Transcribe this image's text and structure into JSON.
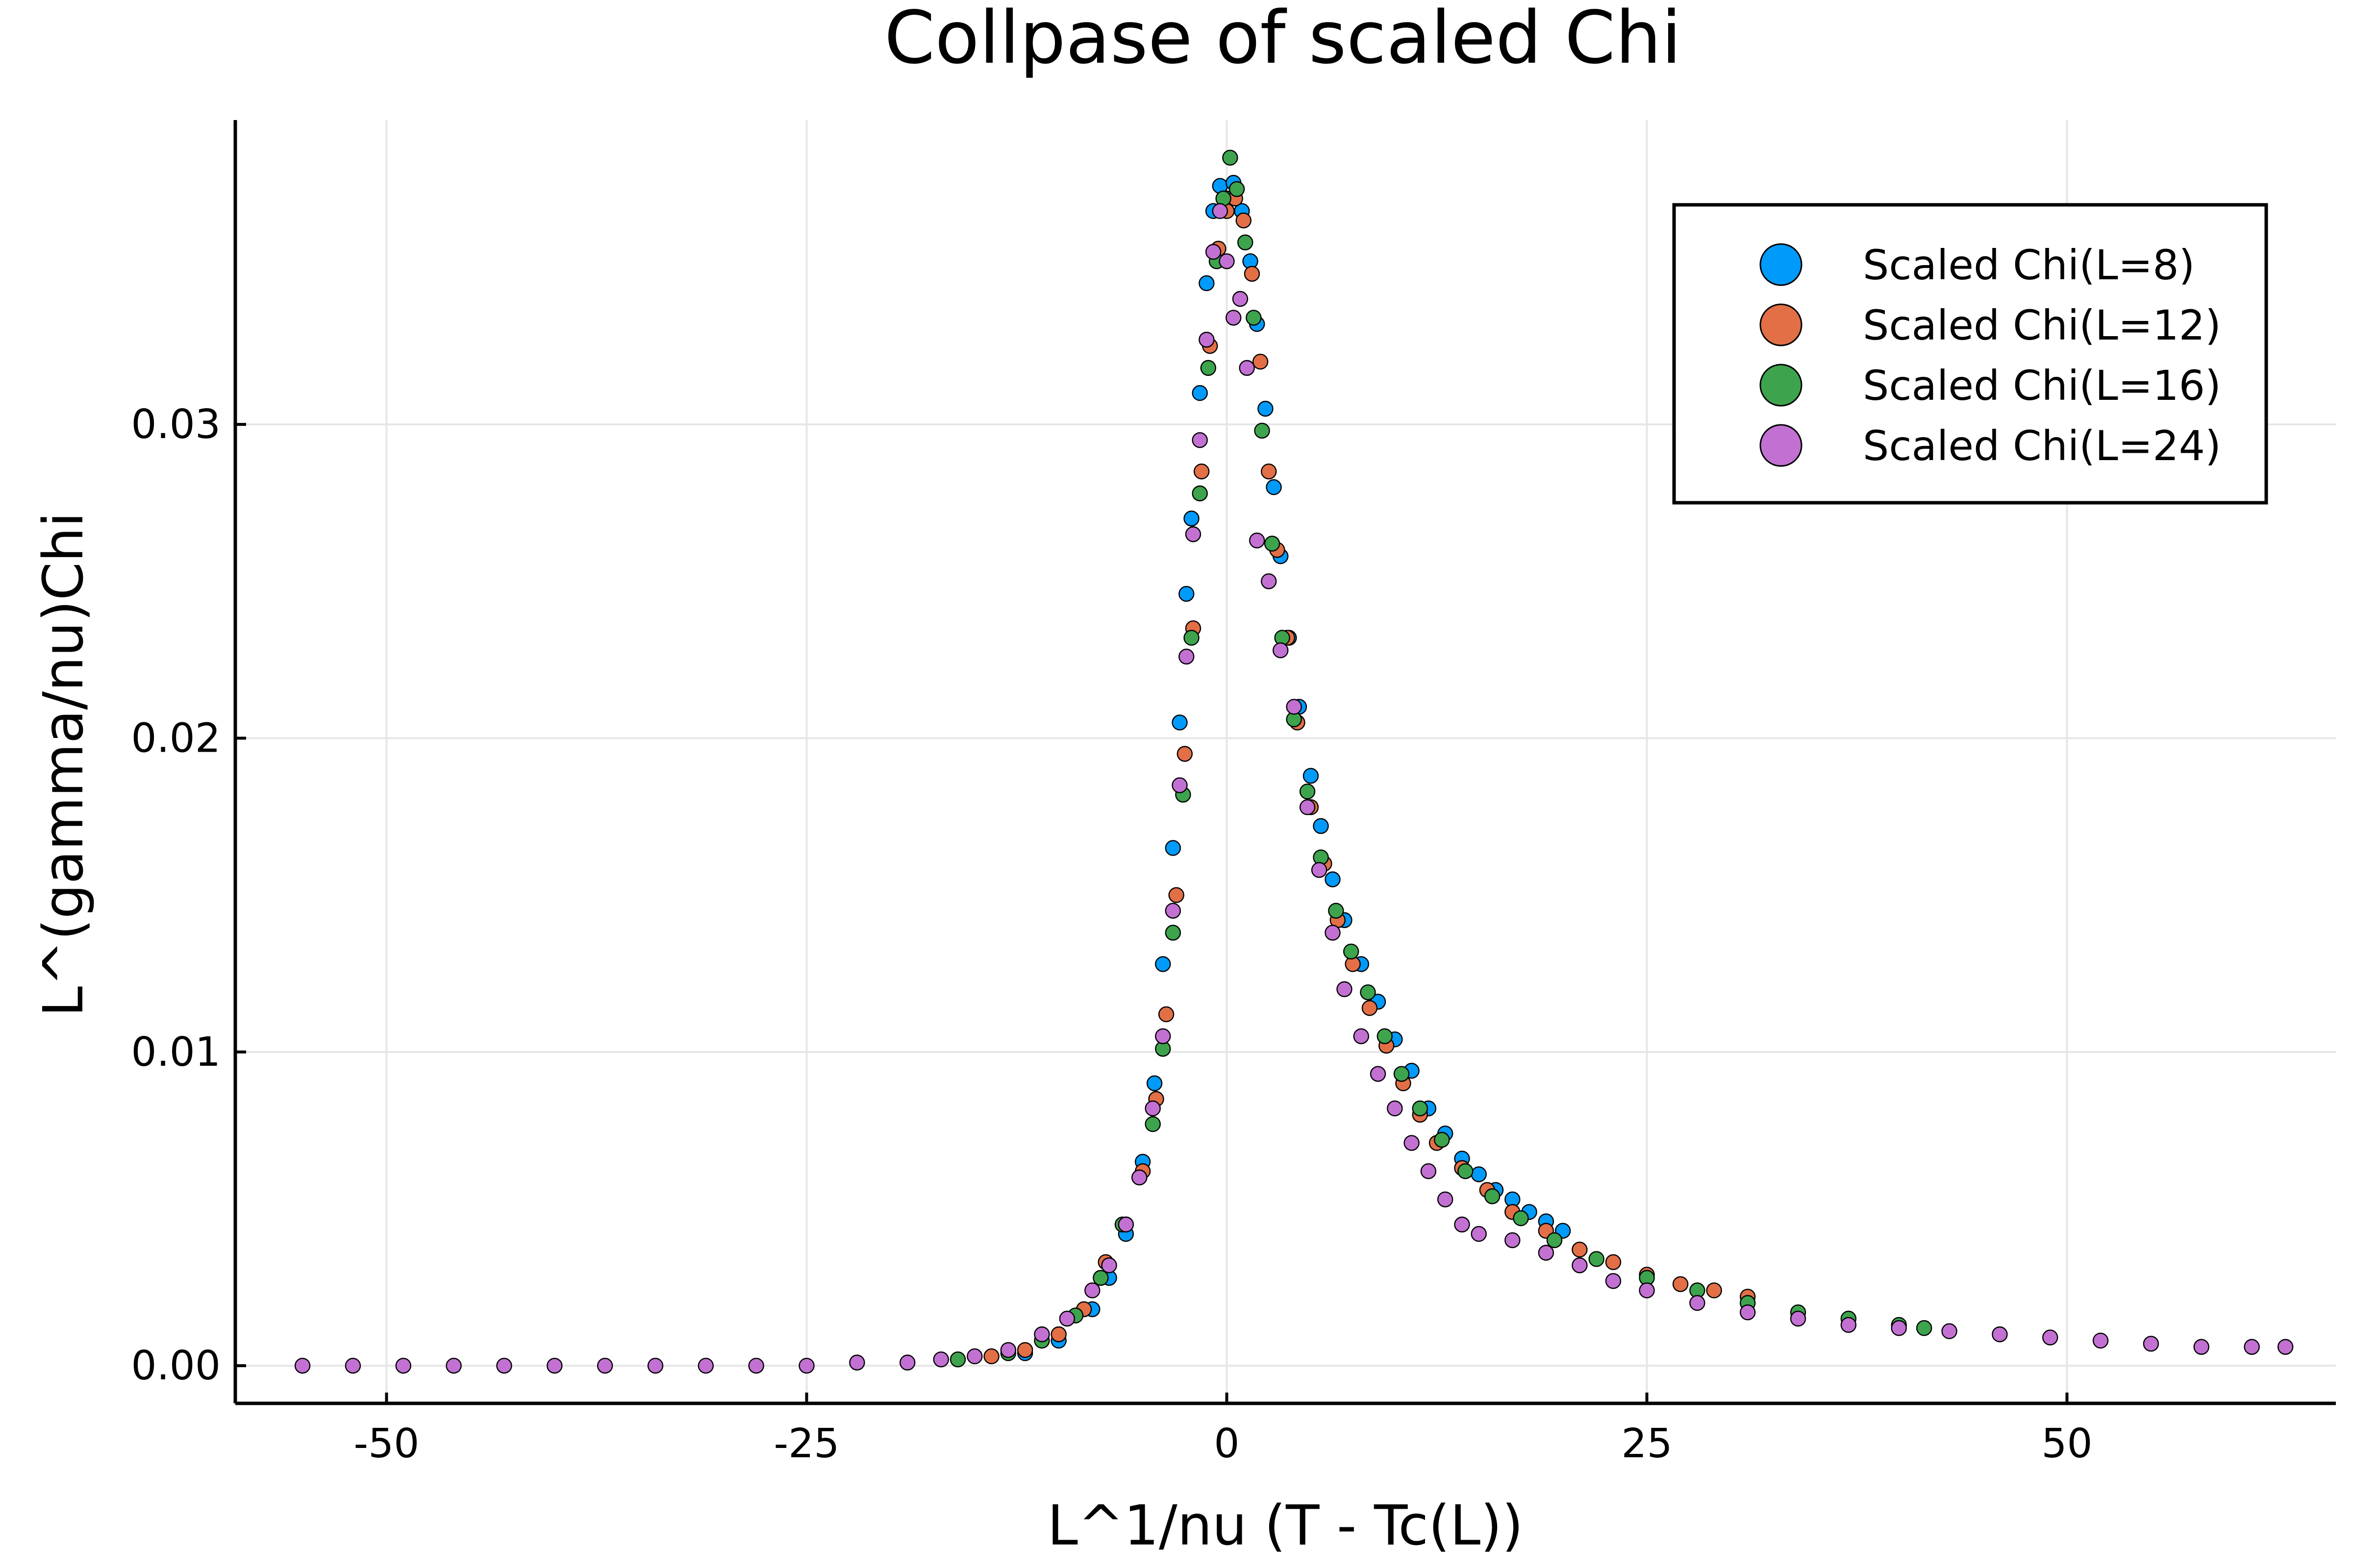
{
  "chart_data": {
    "type": "scatter",
    "title": "Collpase of scaled Chi",
    "xlabel": "L^1/nu (T - Tc(L))",
    "ylabel": "L^(gamma/nu)Chi",
    "xlim": [
      -59,
      66
    ],
    "ylim": [
      -0.0012,
      0.0397
    ],
    "xticks": [
      -50,
      -25,
      0,
      25,
      50
    ],
    "xtick_labels": [
      "-50",
      "-25",
      "0",
      "25",
      "50"
    ],
    "yticks": [
      0.0,
      0.01,
      0.02,
      0.03
    ],
    "ytick_labels": [
      "0.00",
      "0.01",
      "0.02",
      "0.03"
    ],
    "grid": true,
    "legend_position": "top-right",
    "series": [
      {
        "name": "Scaled Chi(L=8)",
        "color": "#009AFA",
        "points": [
          [
            -12,
            0.0004
          ],
          [
            -10,
            0.0008
          ],
          [
            -8,
            0.0018
          ],
          [
            -7,
            0.0028
          ],
          [
            -6,
            0.0042
          ],
          [
            -5,
            0.0065
          ],
          [
            -4.3,
            0.009
          ],
          [
            -3.8,
            0.0128
          ],
          [
            -3.2,
            0.0165
          ],
          [
            -2.8,
            0.0205
          ],
          [
            -2.4,
            0.0246
          ],
          [
            -2.1,
            0.027
          ],
          [
            -1.6,
            0.031
          ],
          [
            -1.2,
            0.0345
          ],
          [
            -0.8,
            0.0368
          ],
          [
            -0.4,
            0.0376
          ],
          [
            0,
            0.0372
          ],
          [
            0.4,
            0.0377
          ],
          [
            0.9,
            0.0368
          ],
          [
            1.4,
            0.0352
          ],
          [
            1.8,
            0.0332
          ],
          [
            2.3,
            0.0305
          ],
          [
            2.8,
            0.028
          ],
          [
            3.2,
            0.0258
          ],
          [
            3.7,
            0.0232
          ],
          [
            4.3,
            0.021
          ],
          [
            5,
            0.0188
          ],
          [
            5.6,
            0.0172
          ],
          [
            6.3,
            0.0155
          ],
          [
            7,
            0.0142
          ],
          [
            8,
            0.0128
          ],
          [
            9,
            0.0116
          ],
          [
            10,
            0.0104
          ],
          [
            11,
            0.0094
          ],
          [
            12,
            0.0082
          ],
          [
            13,
            0.0074
          ],
          [
            14,
            0.0066
          ],
          [
            15,
            0.0061
          ],
          [
            16,
            0.0056
          ],
          [
            17,
            0.0053
          ],
          [
            18,
            0.0049
          ],
          [
            19,
            0.0046
          ],
          [
            20,
            0.0043
          ]
        ]
      },
      {
        "name": "Scaled Chi(L=12)",
        "color": "#E26F46",
        "points": [
          [
            -14,
            0.0003
          ],
          [
            -12,
            0.0005
          ],
          [
            -10,
            0.001
          ],
          [
            -8.5,
            0.0018
          ],
          [
            -7.2,
            0.0033
          ],
          [
            -6,
            0.0045
          ],
          [
            -5,
            0.0062
          ],
          [
            -4.2,
            0.0085
          ],
          [
            -3.6,
            0.0112
          ],
          [
            -3,
            0.015
          ],
          [
            -2.5,
            0.0195
          ],
          [
            -2,
            0.0235
          ],
          [
            -1.5,
            0.0285
          ],
          [
            -1,
            0.0325
          ],
          [
            -0.5,
            0.0356
          ],
          [
            0,
            0.0368
          ],
          [
            0.5,
            0.0372
          ],
          [
            1,
            0.0365
          ],
          [
            1.5,
            0.0348
          ],
          [
            2,
            0.032
          ],
          [
            2.5,
            0.0285
          ],
          [
            3,
            0.026
          ],
          [
            3.6,
            0.0232
          ],
          [
            4.2,
            0.0205
          ],
          [
            5,
            0.0178
          ],
          [
            5.8,
            0.016
          ],
          [
            6.6,
            0.0142
          ],
          [
            7.5,
            0.0128
          ],
          [
            8.5,
            0.0114
          ],
          [
            9.5,
            0.0102
          ],
          [
            10.5,
            0.009
          ],
          [
            11.5,
            0.008
          ],
          [
            12.5,
            0.0071
          ],
          [
            14,
            0.0063
          ],
          [
            15.5,
            0.0056
          ],
          [
            17,
            0.0049
          ],
          [
            19,
            0.0043
          ],
          [
            21,
            0.0037
          ],
          [
            23,
            0.0033
          ],
          [
            25,
            0.0029
          ],
          [
            27,
            0.0026
          ],
          [
            29,
            0.0024
          ],
          [
            31,
            0.0022
          ]
        ]
      },
      {
        "name": "Scaled Chi(L=16)",
        "color": "#3DA44D",
        "points": [
          [
            -16,
            0.0002
          ],
          [
            -13,
            0.0004
          ],
          [
            -11,
            0.0008
          ],
          [
            -9,
            0.0016
          ],
          [
            -7.5,
            0.0028
          ],
          [
            -6.2,
            0.0045
          ],
          [
            -5.2,
            0.006
          ],
          [
            -4.4,
            0.0077
          ],
          [
            -3.8,
            0.0101
          ],
          [
            -3.2,
            0.0138
          ],
          [
            -2.6,
            0.0182
          ],
          [
            -2.1,
            0.0232
          ],
          [
            -1.6,
            0.0278
          ],
          [
            -1.1,
            0.0318
          ],
          [
            -0.6,
            0.0352
          ],
          [
            -0.2,
            0.0372
          ],
          [
            0.2,
            0.0385
          ],
          [
            0.6,
            0.0375
          ],
          [
            1.1,
            0.0358
          ],
          [
            1.6,
            0.0334
          ],
          [
            2.1,
            0.0298
          ],
          [
            2.7,
            0.0262
          ],
          [
            3.3,
            0.0232
          ],
          [
            4,
            0.0206
          ],
          [
            4.8,
            0.0183
          ],
          [
            5.6,
            0.0162
          ],
          [
            6.5,
            0.0145
          ],
          [
            7.4,
            0.0132
          ],
          [
            8.4,
            0.0119
          ],
          [
            9.4,
            0.0105
          ],
          [
            10.4,
            0.0093
          ],
          [
            11.5,
            0.0082
          ],
          [
            12.8,
            0.0072
          ],
          [
            14.2,
            0.0062
          ],
          [
            15.8,
            0.0054
          ],
          [
            17.5,
            0.0047
          ],
          [
            19.5,
            0.004
          ],
          [
            22,
            0.0034
          ],
          [
            25,
            0.0028
          ],
          [
            28,
            0.0024
          ],
          [
            31,
            0.002
          ],
          [
            34,
            0.0017
          ],
          [
            37,
            0.0015
          ],
          [
            40,
            0.0013
          ],
          [
            41.5,
            0.0012
          ]
        ]
      },
      {
        "name": "Scaled Chi(L=24)",
        "color": "#C271D2",
        "points": [
          [
            -55,
            0
          ],
          [
            -52,
            0
          ],
          [
            -49,
            0
          ],
          [
            -46,
            0
          ],
          [
            -43,
            0
          ],
          [
            -40,
            0
          ],
          [
            -37,
            0
          ],
          [
            -34,
            0
          ],
          [
            -31,
            0
          ],
          [
            -28,
            0
          ],
          [
            -25,
            0
          ],
          [
            -22,
            0.0001
          ],
          [
            -19,
            0.0001
          ],
          [
            -17,
            0.0002
          ],
          [
            -15,
            0.0003
          ],
          [
            -13,
            0.0005
          ],
          [
            -11,
            0.001
          ],
          [
            -9.5,
            0.0015
          ],
          [
            -8,
            0.0024
          ],
          [
            -7,
            0.0032
          ],
          [
            -6,
            0.0045
          ],
          [
            -5.2,
            0.006
          ],
          [
            -4.4,
            0.0082
          ],
          [
            -3.8,
            0.0105
          ],
          [
            -3.2,
            0.0145
          ],
          [
            -2.8,
            0.0185
          ],
          [
            -2.4,
            0.0226
          ],
          [
            -2,
            0.0265
          ],
          [
            -1.6,
            0.0295
          ],
          [
            -1.2,
            0.0327
          ],
          [
            -0.8,
            0.0355
          ],
          [
            -0.4,
            0.0368
          ],
          [
            0,
            0.0352
          ],
          [
            0.4,
            0.0334
          ],
          [
            0.8,
            0.034
          ],
          [
            1.2,
            0.0318
          ],
          [
            1.8,
            0.0263
          ],
          [
            2.5,
            0.025
          ],
          [
            3.2,
            0.0228
          ],
          [
            4,
            0.021
          ],
          [
            4.8,
            0.0178
          ],
          [
            5.5,
            0.0158
          ],
          [
            6.3,
            0.0138
          ],
          [
            7,
            0.012
          ],
          [
            8,
            0.0105
          ],
          [
            9,
            0.0093
          ],
          [
            10,
            0.0082
          ],
          [
            11,
            0.0071
          ],
          [
            12,
            0.0062
          ],
          [
            13,
            0.0053
          ],
          [
            14,
            0.0045
          ],
          [
            15,
            0.0042
          ],
          [
            17,
            0.004
          ],
          [
            19,
            0.0036
          ],
          [
            21,
            0.0032
          ],
          [
            23,
            0.0027
          ],
          [
            25,
            0.0024
          ],
          [
            28,
            0.002
          ],
          [
            31,
            0.0017
          ],
          [
            34,
            0.0015
          ],
          [
            37,
            0.0013
          ],
          [
            40,
            0.0012
          ],
          [
            43,
            0.0011
          ],
          [
            46,
            0.001
          ],
          [
            49,
            0.0009
          ],
          [
            52,
            0.0008
          ],
          [
            55,
            0.0007
          ],
          [
            58,
            0.0006
          ],
          [
            61,
            0.0006
          ],
          [
            63,
            0.0006
          ]
        ]
      }
    ]
  }
}
